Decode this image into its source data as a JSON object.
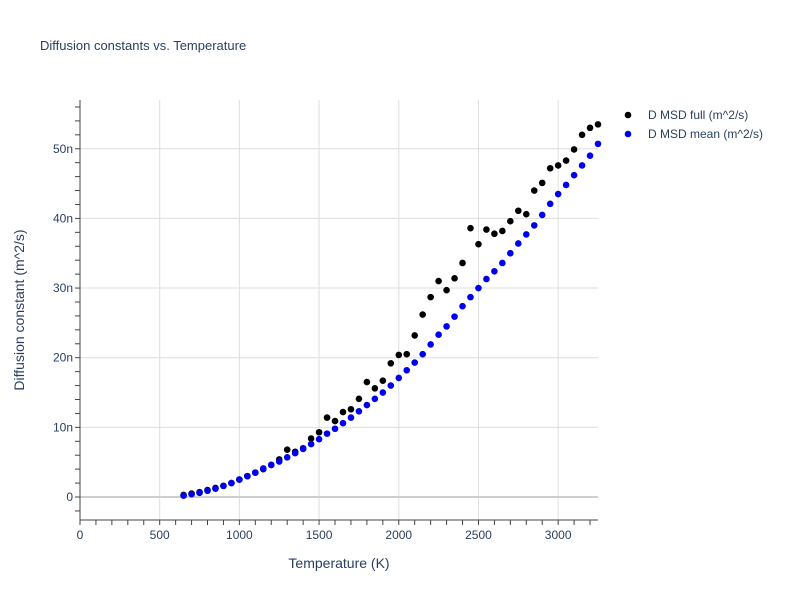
{
  "chart_data": {
    "type": "scatter",
    "title": "Diffusion constants vs. Temperature",
    "xlabel": "Temperature (K)",
    "ylabel": "Diffusion constant (m^2/s)",
    "xlim": [
      0,
      3250
    ],
    "ylim": [
      -3.3,
      57
    ],
    "x_ticks": [
      0,
      500,
      1000,
      1500,
      2000,
      2500,
      3000
    ],
    "x_tick_labels": [
      "0",
      "500",
      "1000",
      "1500",
      "2000",
      "2500",
      "3000"
    ],
    "y_ticks": [
      0,
      10,
      20,
      30,
      40,
      50
    ],
    "y_tick_labels": [
      "0",
      "10n",
      "20n",
      "30n",
      "40n",
      "50n"
    ],
    "y_units_note": "values in units of 1e-9 m^2/s (tick suffix n)",
    "grid": true,
    "legend_position": "top-right",
    "series": [
      {
        "name": "D MSD full (m^2/s)",
        "color": "#000000",
        "x": [
          650,
          700,
          750,
          800,
          850,
          900,
          950,
          1000,
          1050,
          1100,
          1150,
          1200,
          1250,
          1300,
          1350,
          1400,
          1450,
          1500,
          1550,
          1600,
          1650,
          1700,
          1750,
          1800,
          1850,
          1900,
          1950,
          2000,
          2050,
          2100,
          2150,
          2200,
          2250,
          2300,
          2350,
          2400,
          2450,
          2500,
          2550,
          2600,
          2650,
          2700,
          2750,
          2800,
          2850,
          2900,
          2950,
          3000,
          3050,
          3100,
          3150,
          3200,
          3250
        ],
        "y": [
          0.3,
          0.5,
          0.7,
          1.0,
          1.3,
          1.6,
          2.0,
          2.5,
          3.0,
          3.5,
          4.0,
          4.6,
          5.4,
          6.8,
          6.5,
          7.0,
          8.4,
          9.3,
          11.4,
          10.9,
          12.2,
          12.6,
          14.1,
          16.5,
          15.6,
          16.7,
          19.2,
          20.4,
          20.5,
          23.2,
          26.2,
          28.7,
          31.0,
          29.7,
          31.4,
          33.6,
          38.6,
          36.3,
          38.4,
          37.8,
          38.2,
          39.6,
          41.1,
          40.6,
          44.0,
          45.1,
          47.2,
          47.6,
          48.3,
          49.9,
          52.0,
          53.0,
          53.5
        ]
      },
      {
        "name": "D MSD mean (m^2/s)",
        "color": "#0000ee",
        "x": [
          650,
          700,
          750,
          800,
          850,
          900,
          950,
          1000,
          1050,
          1100,
          1150,
          1200,
          1250,
          1300,
          1350,
          1400,
          1450,
          1500,
          1550,
          1600,
          1650,
          1700,
          1750,
          1800,
          1850,
          1900,
          1950,
          2000,
          2050,
          2100,
          2150,
          2200,
          2250,
          2300,
          2350,
          2400,
          2450,
          2500,
          2550,
          2600,
          2650,
          2700,
          2750,
          2800,
          2850,
          2900,
          2950,
          3000,
          3050,
          3100,
          3150,
          3200,
          3250
        ],
        "y": [
          0.2,
          0.4,
          0.6,
          0.9,
          1.2,
          1.6,
          2.0,
          2.5,
          3.0,
          3.5,
          4.1,
          4.6,
          5.1,
          5.7,
          6.3,
          6.9,
          7.6,
          8.3,
          9.1,
          9.8,
          10.6,
          11.4,
          12.3,
          13.2,
          14.1,
          15.0,
          16.0,
          17.1,
          18.2,
          19.3,
          20.5,
          21.9,
          23.3,
          24.5,
          25.9,
          27.4,
          28.7,
          30.0,
          31.3,
          32.4,
          33.6,
          35.0,
          36.4,
          37.7,
          39.0,
          40.5,
          42.1,
          43.5,
          44.8,
          46.2,
          47.6,
          49.0,
          50.7
        ]
      }
    ]
  }
}
